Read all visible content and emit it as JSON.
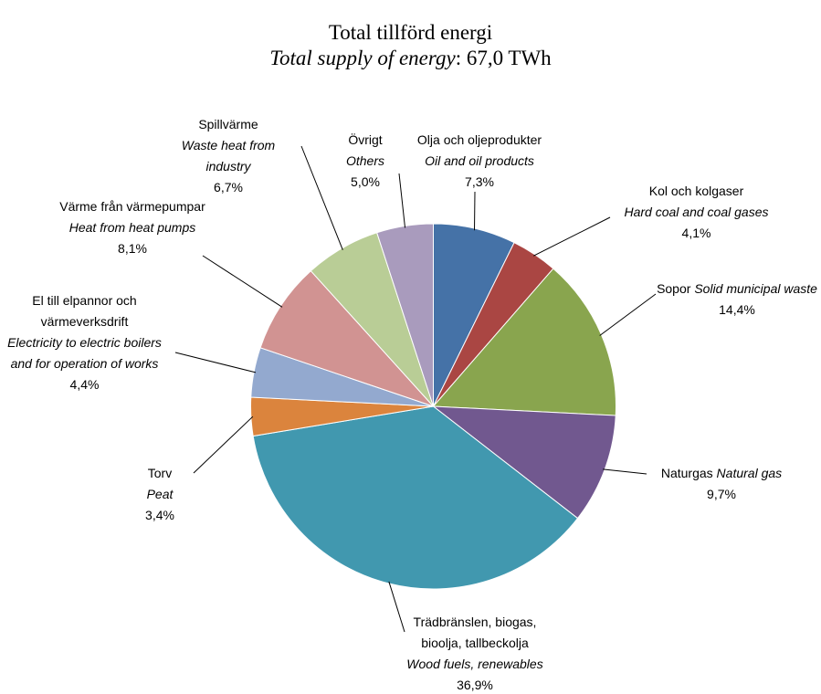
{
  "chart_data": {
    "type": "pie",
    "title": "Total tillförd energi",
    "subtitle": "Total supply  of energy",
    "subtitle_value": ":  67,0 TWh",
    "categories": [
      "Olja och oljeprodukter",
      "Kol och kolgaser",
      "Sopor",
      "Naturgas",
      "Trädbränslen, biogas, bioolja, tallbeckolja",
      "Torv",
      "El till elpannor och värmeverksdrift",
      "Värme från värmepumpar",
      "Spillvärme",
      "Övrigt"
    ],
    "categories_en": [
      "Oil and oil products",
      "Hard coal and coal gases",
      "Solid municipal waste",
      "Natural gas",
      "Wood fuels, renewables",
      "Peat",
      "Electricity  to electric boilers and for operation of works",
      "Heat from heat pumps",
      "Waste heat from industry",
      "Others"
    ],
    "values": [
      7.3,
      4.1,
      14.4,
      9.7,
      36.9,
      3.4,
      4.4,
      8.1,
      6.7,
      5.0
    ],
    "value_labels": [
      "7,3%",
      "4,1%",
      "14,4%",
      "9,7%",
      "36,9%",
      "3,4%",
      "4,4%",
      "8,1%",
      "6,7%",
      "5,0%"
    ],
    "colors": [
      "#4572a7",
      "#aa4643",
      "#89a54e",
      "#71588f",
      "#4198af",
      "#db843d",
      "#93a9cf",
      "#d19392",
      "#b9cd96",
      "#a99bbd"
    ]
  }
}
